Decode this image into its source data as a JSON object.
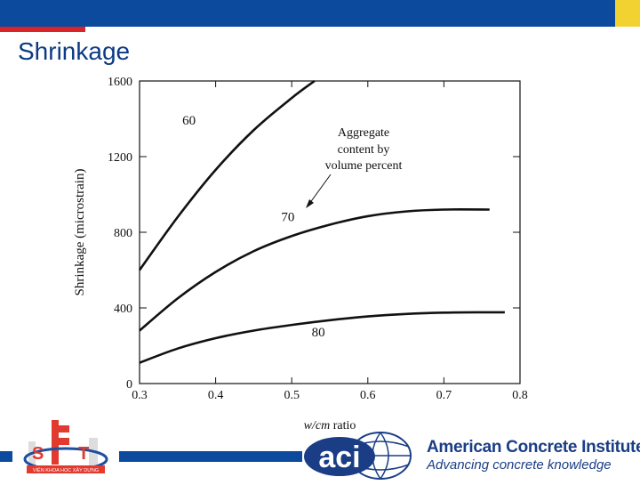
{
  "slide": {
    "title": "Shrinkage"
  },
  "colors": {
    "brand_blue": "#0b4a9c",
    "accent_red": "#d8242a",
    "accent_yellow": "#f2d230"
  },
  "chart_data": {
    "type": "line",
    "title": "",
    "xlabel": "w/cm ratio",
    "ylabel": "Shrinkage (microstrain)",
    "xlim": [
      0.3,
      0.8
    ],
    "ylim": [
      0,
      1600
    ],
    "xticks": [
      "0.3",
      "0.4",
      "0.5",
      "0.6",
      "0.7",
      "0.8"
    ],
    "yticks": [
      "0",
      "400",
      "800",
      "1200",
      "1600"
    ],
    "annotation": [
      "Aggregate",
      "content by",
      "volume percent"
    ],
    "grid": false,
    "series": [
      {
        "name": "60",
        "x": [
          0.3,
          0.35,
          0.4,
          0.45,
          0.5,
          0.53
        ],
        "y": [
          600,
          880,
          1130,
          1340,
          1510,
          1600
        ]
      },
      {
        "name": "70",
        "x": [
          0.3,
          0.35,
          0.4,
          0.45,
          0.5,
          0.55,
          0.6,
          0.65,
          0.7,
          0.76
        ],
        "y": [
          280,
          450,
          590,
          700,
          780,
          840,
          885,
          910,
          920,
          920
        ]
      },
      {
        "name": "80",
        "x": [
          0.3,
          0.35,
          0.4,
          0.45,
          0.5,
          0.55,
          0.6,
          0.65,
          0.7,
          0.75,
          0.78
        ],
        "y": [
          110,
          185,
          240,
          280,
          310,
          335,
          355,
          368,
          375,
          377,
          377
        ]
      }
    ]
  },
  "footer": {
    "left_logo_text": "VIỆN KHOA HỌC XÂY DỰNG",
    "aci_mark": "aci",
    "aci_name": "American Concrete Institute",
    "aci_tagline": "Advancing concrete knowledge"
  }
}
